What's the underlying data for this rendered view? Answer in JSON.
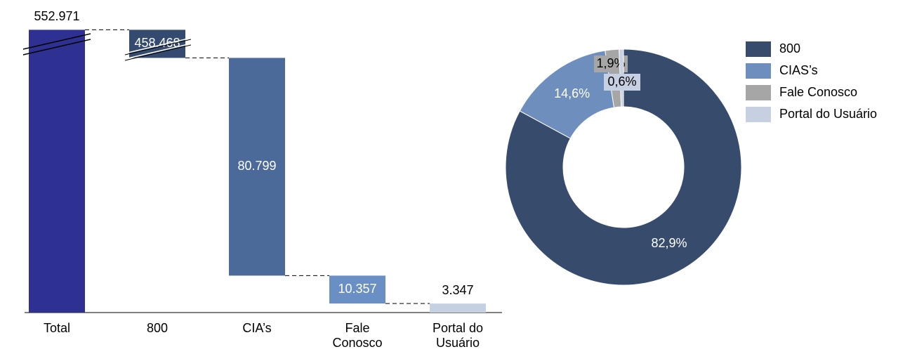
{
  "chart_data": [
    {
      "type": "waterfall",
      "categories": [
        "Total",
        "800",
        "CIA’s",
        "Fale Conosco",
        "Portal do Usuário"
      ],
      "values": [
        552971,
        458468,
        80799,
        10357,
        3347
      ],
      "value_labels": [
        "552.971",
        "458.468",
        "80.799",
        "10.357",
        "3.347"
      ],
      "colors": [
        "#2e3192",
        "#344a6e",
        "#4b6a9a",
        "#6a8fc4",
        "#c5d0e3"
      ]
    },
    {
      "type": "donut",
      "categories": [
        "800",
        "CIAS’s",
        "Fale Conosco",
        "Portal do Usuário"
      ],
      "values": [
        82.9,
        14.6,
        1.9,
        0.6
      ],
      "value_labels": [
        "82,9%",
        "14,6%",
        "1,9%",
        "0,6%"
      ],
      "colors": [
        "#374b6c",
        "#6e8fbd",
        "#a6a6a6",
        "#c6d0e2"
      ],
      "legend": "right"
    }
  ]
}
